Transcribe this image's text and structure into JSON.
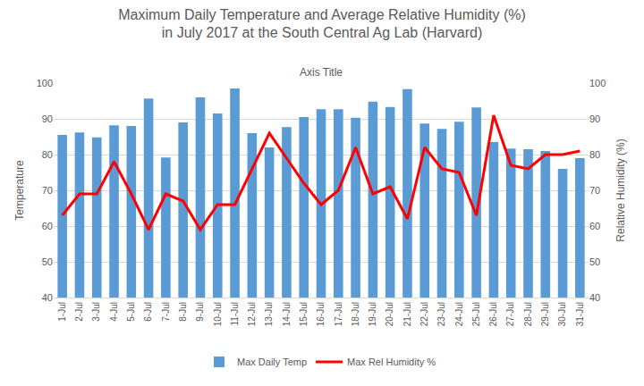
{
  "chart_data": {
    "type": "bar",
    "title": [
      "Maximum Daily Temperature and Average Relative Humidity (%)",
      "in July 2017 at the South Central Ag Lab (Harvard)"
    ],
    "x_label": "Axis Title",
    "y_label": "Temperature",
    "y2_label": "Relative Humidity (%)",
    "categories": [
      "1-Jul",
      "2-Jul",
      "3-Jul",
      "4-Jul",
      "5-Jul",
      "6-Jul",
      "7-Jul",
      "8-Jul",
      "9-Jul",
      "10-Jul",
      "11-Jul",
      "12-Jul",
      "13-Jul",
      "14-Jul",
      "15-Jul",
      "16-Jul",
      "17-Jul",
      "18-Jul",
      "19-Jul",
      "20-Jul",
      "21-Jul",
      "22-Jul",
      "23-Jul",
      "24-Jul",
      "25-Jul",
      "26-Jul",
      "27-Jul",
      "28-Jul",
      "29-Jul",
      "30-Jul",
      "31-Jul"
    ],
    "series": [
      {
        "name": "Max Daily Temp",
        "type": "bar",
        "color": "#5b9bd5",
        "values": [
          85.5,
          86.2,
          84.8,
          88.2,
          88,
          95.7,
          79.2,
          89,
          96,
          91.5,
          98.5,
          86,
          82,
          87.7,
          90.5,
          92.7,
          92.7,
          90.3,
          94.8,
          93.3,
          98.3,
          88.7,
          87.2,
          89.2,
          93.2,
          83.5,
          81.7,
          81.5,
          81,
          76,
          79
        ]
      },
      {
        "name": "Max Rel Humidity %",
        "type": "line",
        "color": "#ff0000",
        "axis": "y2",
        "values": [
          63,
          69,
          69,
          78,
          69,
          59,
          69,
          67,
          59,
          66,
          66,
          76,
          86,
          79,
          72,
          66,
          70,
          82,
          69,
          71,
          62,
          82,
          76,
          75,
          63,
          91,
          77,
          76,
          80,
          80,
          81
        ]
      }
    ],
    "ylim": [
      40,
      100
    ],
    "yticks": [
      40,
      50,
      60,
      70,
      80,
      90,
      100
    ],
    "y2lim": [
      40,
      100
    ],
    "y2ticks": [
      40,
      50,
      60,
      70,
      80,
      90,
      100
    ],
    "grid": true,
    "legend": "bottom"
  }
}
